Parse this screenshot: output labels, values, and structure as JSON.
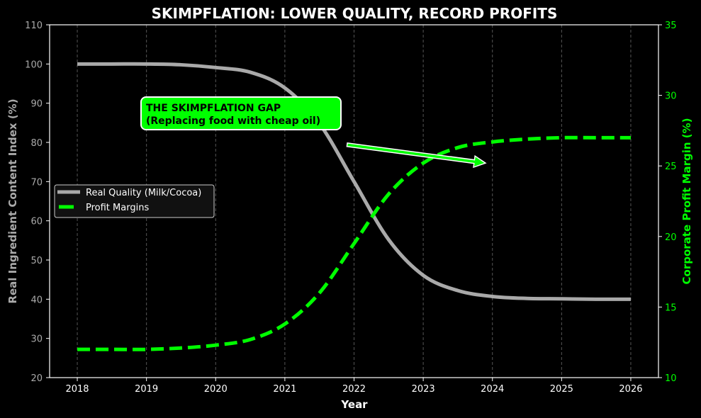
{
  "chart_data": {
    "type": "line",
    "title": "SKIMPFLATION: LOWER QUALITY, RECORD PROFITS",
    "xlabel": "Year",
    "ylabel": "Real Ingredient Content Index (%)",
    "ylabel_right": "Corporate Profit Margin (%)",
    "xlim": [
      2017.6,
      2026.4
    ],
    "ylim": [
      20,
      110
    ],
    "ylim_right": [
      10,
      35
    ],
    "x_ticks": [
      2018,
      2019,
      2020,
      2021,
      2022,
      2023,
      2024,
      2025,
      2026
    ],
    "y_ticks": [
      20,
      30,
      40,
      50,
      60,
      70,
      80,
      90,
      100,
      110
    ],
    "y_ticks_right": [
      10,
      15,
      20,
      25,
      30,
      35
    ],
    "grid": "vertical dashed",
    "legend_position": "center-left",
    "x": [
      2018,
      2018.5,
      2019,
      2019.5,
      2020,
      2020.5,
      2021,
      2021.5,
      2022,
      2022.5,
      2023,
      2023.5,
      2024,
      2024.5,
      2025,
      2025.5,
      2026
    ],
    "series": [
      {
        "name": "Real Quality (Milk/Cocoa)",
        "axis": "left",
        "color": "#a9a9a9",
        "style": "solid",
        "values": [
          100.0,
          100.0,
          100.0,
          99.8,
          99.1,
          97.9,
          93.9,
          84.8,
          70.0,
          55.2,
          46.1,
          42.2,
          40.7,
          40.2,
          40.1,
          40.0,
          40.0
        ]
      },
      {
        "name": "Profit Margins",
        "axis": "right",
        "color": "#00ff00",
        "style": "dashed",
        "values": [
          12.0,
          12.0,
          12.0,
          12.1,
          12.3,
          12.7,
          13.8,
          16.0,
          19.5,
          23.0,
          25.2,
          26.3,
          26.7,
          26.9,
          27.0,
          27.0,
          27.0
        ]
      }
    ],
    "annotations": [
      {
        "text_line1": "THE SKIMPFLATION GAP",
        "text_line2": "(Replacing food with cheap oil)",
        "box_color": "#00ff00",
        "arrow_from": [
          2021.9,
          26.5
        ],
        "arrow_to": [
          2023.9,
          25.2
        ]
      }
    ]
  },
  "colors": {
    "background": "#000000",
    "quality": "#a9a9a9",
    "profit": "#00ff00",
    "grid": "#555555",
    "axis": "#ffffff"
  }
}
